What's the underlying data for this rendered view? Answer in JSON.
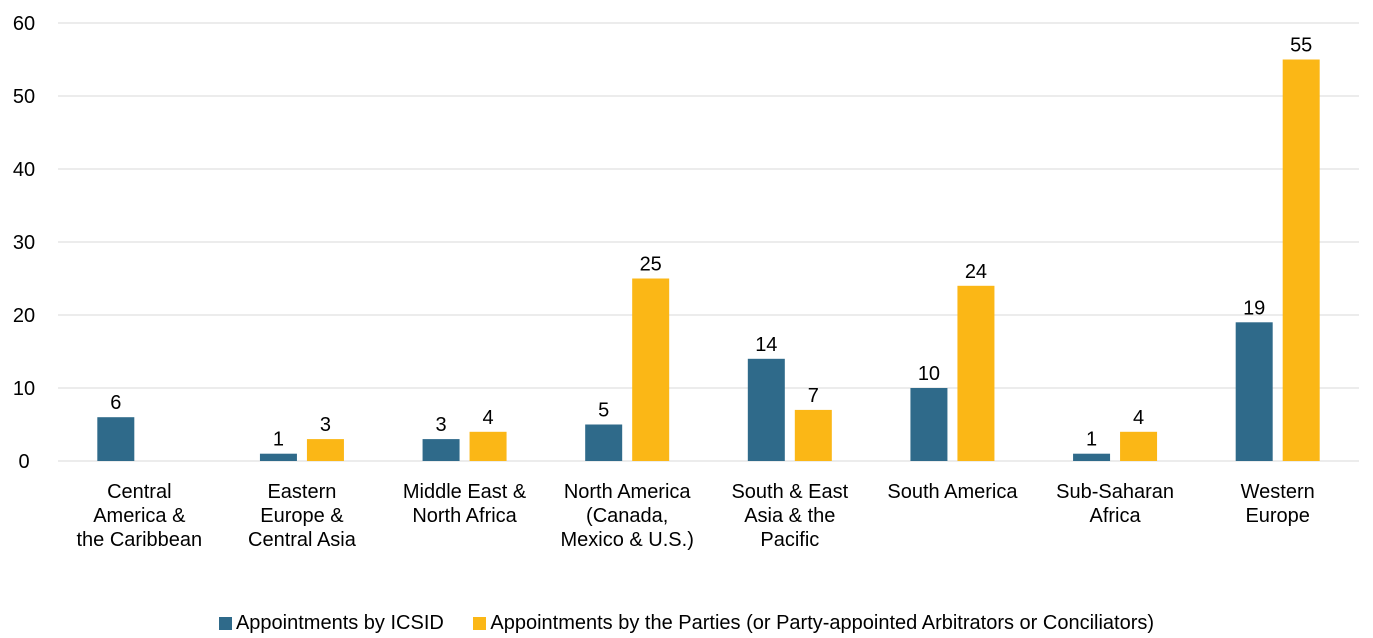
{
  "chart_data": {
    "type": "bar",
    "categories": [
      [
        "Central",
        "America &",
        "the Caribbean"
      ],
      [
        "Eastern",
        "Europe &",
        "Central Asia"
      ],
      [
        "Middle East &",
        "North Africa"
      ],
      [
        "North America",
        "(Canada,",
        "Mexico & U.S.)"
      ],
      [
        "South & East",
        "Asia & the",
        "Pacific"
      ],
      [
        "South America"
      ],
      [
        "Sub-Saharan",
        "Africa"
      ],
      [
        "Western",
        "Europe"
      ]
    ],
    "series": [
      {
        "name": "Appointments by ICSID",
        "color": "#2f6a8a",
        "values": [
          6,
          1,
          3,
          5,
          14,
          10,
          1,
          19
        ]
      },
      {
        "name": "Appointments by the Parties (or Party-appointed Arbitrators or Conciliators)",
        "color": "#fbb716",
        "values": [
          null,
          3,
          4,
          25,
          7,
          24,
          4,
          55
        ]
      }
    ],
    "ylim": [
      0,
      60
    ],
    "yticks": [
      0,
      10,
      20,
      30,
      40,
      50,
      60
    ],
    "grid": true,
    "legend": "bottom",
    "data_labels": true,
    "title": "",
    "xlabel": "",
    "ylabel": ""
  },
  "legend": {
    "icsid_label": "Appointments by ICSID",
    "parties_label": "Appointments by the Parties (or Party-appointed Arbitrators or Conciliators)"
  }
}
